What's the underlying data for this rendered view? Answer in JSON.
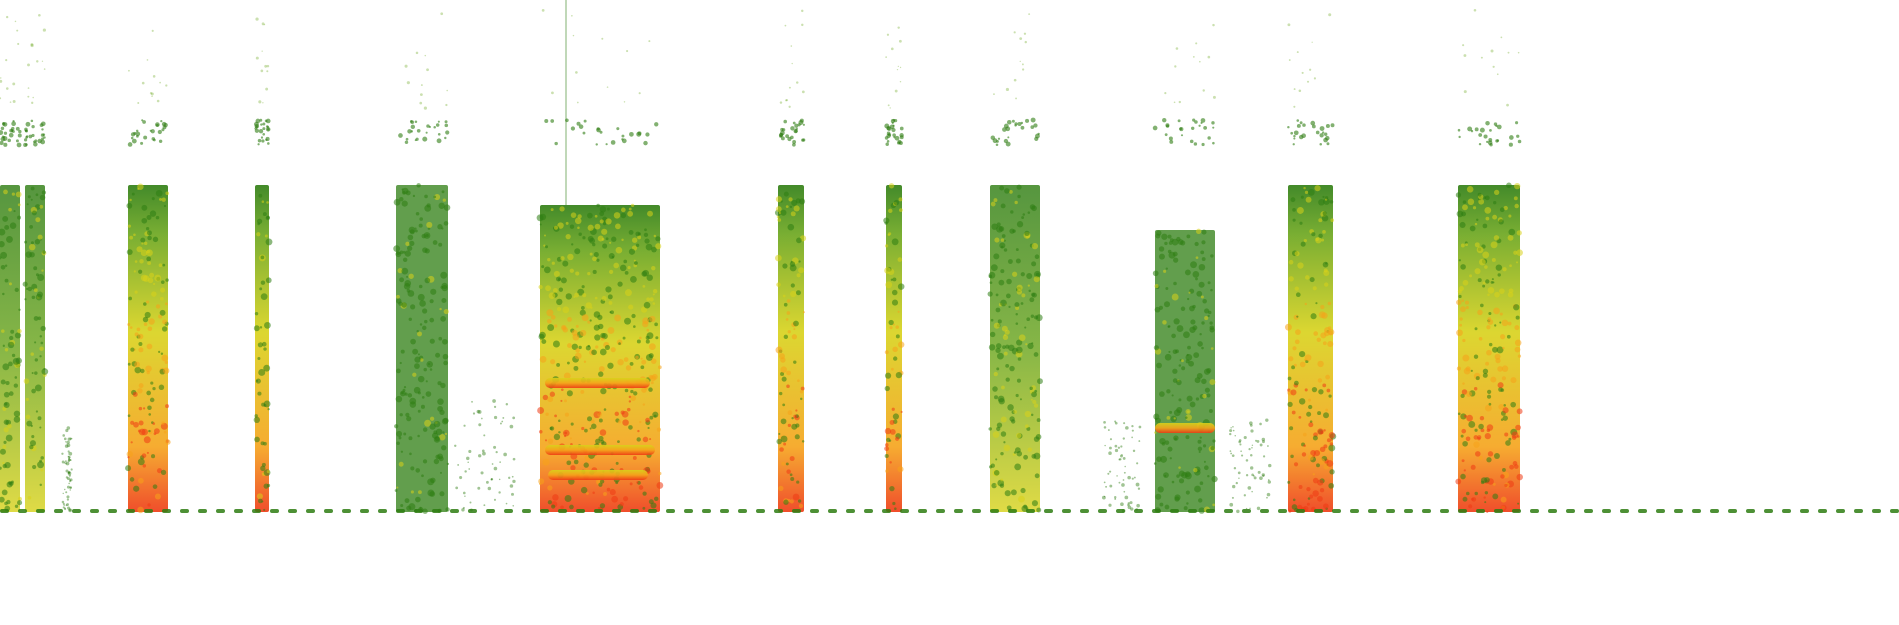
{
  "image": {
    "kind": "spectrogram",
    "background": "#ffffff",
    "palette": {
      "low": "#2e7d12",
      "mid": "#6aa51c",
      "yellow": "#d8d21a",
      "orange": "#f5a31a",
      "high": "#ee3a14"
    },
    "segments_count": 16
  }
}
